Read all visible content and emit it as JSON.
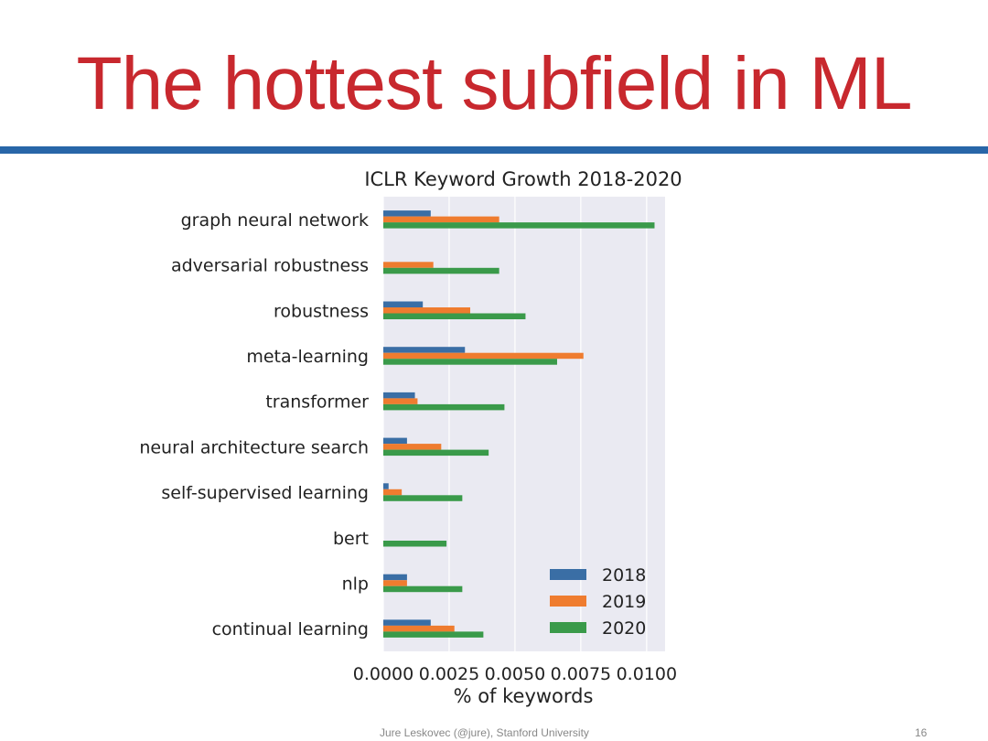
{
  "slide": {
    "title": "The hottest subfield in ML",
    "footer_credit": "Jure Leskovec (@jure), Stanford University",
    "page_number": "16"
  },
  "colors": {
    "title": "#c8282e",
    "rule": "#2866a8",
    "plot_bg": "#eaeaf2",
    "s2018": "#3a6ea5",
    "s2019": "#ef7c2f",
    "s2020": "#3a9a4a"
  },
  "chart_data": {
    "type": "bar",
    "orientation": "horizontal",
    "title": "ICLR Keyword Growth 2018-2020",
    "xlabel": "% of keywords",
    "ylabel": "",
    "xlim": [
      0,
      0.0107
    ],
    "xticks": [
      "0.0000",
      "0.0025",
      "0.0050",
      "0.0075",
      "0.0100"
    ],
    "xtick_values": [
      0,
      0.0025,
      0.005,
      0.0075,
      0.01
    ],
    "grid": true,
    "legend_position": "lower-right",
    "categories": [
      "graph neural network",
      "adversarial robustness",
      "robustness",
      "meta-learning",
      "transformer",
      "neural architecture search",
      "self-supervised learning",
      "bert",
      "nlp",
      "continual learning"
    ],
    "series": [
      {
        "name": "2018",
        "color": "#3a6ea5",
        "values": [
          0.0018,
          0.0,
          0.0015,
          0.0031,
          0.0012,
          0.0009,
          0.0002,
          0.0,
          0.0009,
          0.0018
        ]
      },
      {
        "name": "2019",
        "color": "#ef7c2f",
        "values": [
          0.0044,
          0.0019,
          0.0033,
          0.0076,
          0.0013,
          0.0022,
          0.0007,
          0.0,
          0.0009,
          0.0027
        ]
      },
      {
        "name": "2020",
        "color": "#3a9a4a",
        "values": [
          0.0103,
          0.0044,
          0.0054,
          0.0066,
          0.0046,
          0.004,
          0.003,
          0.0024,
          0.003,
          0.0038
        ]
      }
    ]
  }
}
